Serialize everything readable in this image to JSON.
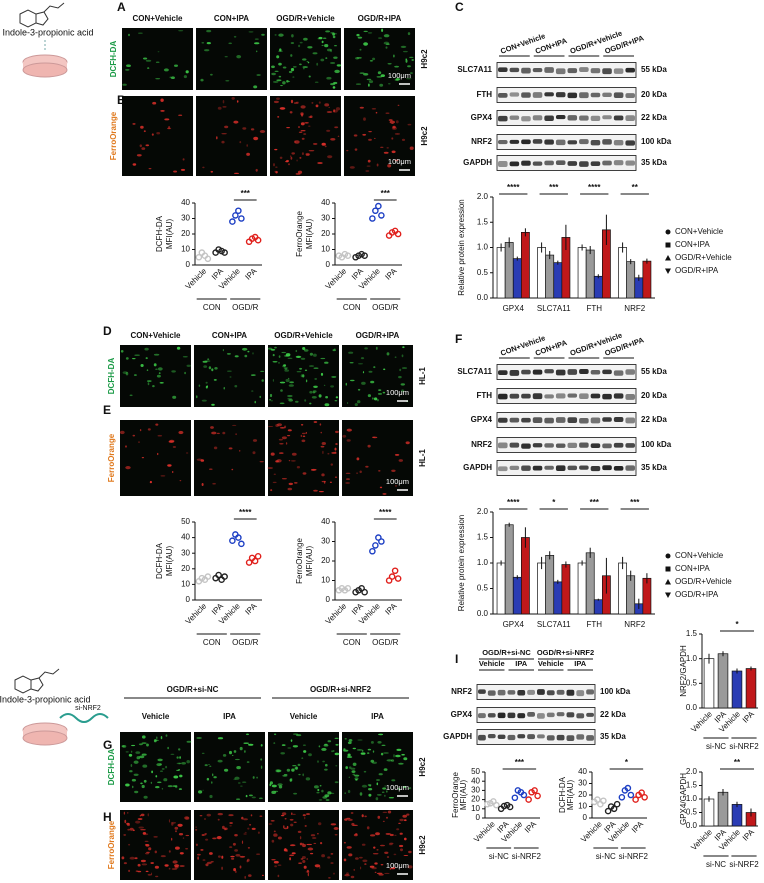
{
  "schematic_top": {
    "compound": "Indole-3-propionic acid"
  },
  "schematic_bottom": {
    "compound": "Indole-3-propionic acid",
    "treatment": "si-NRF2"
  },
  "image_panels": [
    {
      "label": "A",
      "columns": [
        "CON+Vehicle",
        "CON+IPA",
        "OGD/R+Vehicle",
        "OGD/R+IPA"
      ],
      "stain": "DCFH-DA",
      "cell_line": "H9c2",
      "scale": "100μm"
    },
    {
      "label": "B",
      "stain": "FerroOrange",
      "cell_line": "H9c2",
      "scale": "100μm"
    },
    {
      "label": "D",
      "columns": [
        "CON+Vehicle",
        "CON+IPA",
        "OGD/R+Vehicle",
        "OGD/R+IPA"
      ],
      "stain": "DCFH-DA",
      "cell_line": "HL-1",
      "scale": "100μm"
    },
    {
      "label": "E",
      "stain": "FerroOrange",
      "cell_line": "HL-1",
      "scale": "100μm"
    },
    {
      "label": "G",
      "groups": [
        "OGD/R+si-NC",
        "OGD/R+si-NRF2"
      ],
      "columns": [
        "Vehicle",
        "IPA",
        "Vehicle",
        "IPA"
      ],
      "stain": "DCFH-DA",
      "cell_line": "H9c2",
      "scale": "100μm"
    },
    {
      "label": "H",
      "stain": "FerroOrange",
      "cell_line": "H9c2",
      "scale": "100μm"
    }
  ],
  "blots": [
    {
      "label": "C",
      "columns": [
        "CON+Vehicle",
        "CON+IPA",
        "OGD/R+Vehicle",
        "OGD/R+IPA"
      ],
      "rows": [
        {
          "protein": "SLC7A11",
          "size": "55 kDa"
        },
        {
          "protein": "FTH",
          "size": "20 kDa"
        },
        {
          "protein": "GPX4",
          "size": "22 kDa"
        },
        {
          "protein": "NRF2",
          "size": "100 kDa"
        },
        {
          "protein": "GAPDH",
          "size": "35 kDa"
        }
      ]
    },
    {
      "label": "F",
      "columns": [
        "CON+Vehicle",
        "CON+IPA",
        "OGD/R+Vehicle",
        "OGD/R+IPA"
      ],
      "rows": [
        {
          "protein": "SLC7A11",
          "size": "55 kDa"
        },
        {
          "protein": "FTH",
          "size": "20 kDa"
        },
        {
          "protein": "GPX4",
          "size": "22 kDa"
        },
        {
          "protein": "NRF2",
          "size": "100 kDa"
        },
        {
          "protein": "GAPDH",
          "size": "35 kDa"
        }
      ]
    },
    {
      "label": "I",
      "groups": [
        "OGD/R+si-NC",
        "OGD/R+si-NRF2"
      ],
      "columns": [
        "Vehicle",
        "IPA",
        "Vehicle",
        "IPA"
      ],
      "rows": [
        {
          "protein": "NRF2",
          "size": "100 kDa"
        },
        {
          "protein": "GPX4",
          "size": "22 kDa"
        },
        {
          "protein": "GAPDH",
          "size": "35 kDa"
        }
      ]
    }
  ],
  "chart_data": [
    {
      "type": "dot",
      "ylabel": [
        "DCFH-DA",
        "MFI(AU)"
      ],
      "categories": [
        "Vehicle",
        "IPA",
        "Vehicle",
        "IPA"
      ],
      "groups": [
        "CON",
        "OGD/R"
      ],
      "colors": [
        "#c4c4c4",
        "#222222",
        "#1d3fc4",
        "#e0201c"
      ],
      "values": [
        [
          5,
          8,
          6,
          4
        ],
        [
          8,
          10,
          9,
          8
        ],
        [
          28,
          32,
          35,
          30
        ],
        [
          15,
          17,
          18,
          16
        ]
      ],
      "ylim": [
        0,
        40
      ],
      "yticks": [
        0,
        10,
        20,
        30,
        40
      ],
      "comparisons": [
        {
          "label": "***",
          "from": 2,
          "to": 3
        }
      ]
    },
    {
      "type": "dot",
      "ylabel": [
        "FerroOrange",
        "MFI(AU)"
      ],
      "categories": [
        "Vehicle",
        "IPA",
        "Vehicle",
        "IPA"
      ],
      "groups": [
        "CON",
        "OGD/R"
      ],
      "colors": [
        "#c4c4c4",
        "#222222",
        "#1d3fc4",
        "#e0201c"
      ],
      "values": [
        [
          6,
          5,
          7,
          6
        ],
        [
          5,
          6,
          7,
          6
        ],
        [
          30,
          35,
          38,
          32
        ],
        [
          19,
          21,
          22,
          20
        ]
      ],
      "ylim": [
        0,
        40
      ],
      "yticks": [
        0,
        10,
        20,
        30,
        40
      ],
      "comparisons": [
        {
          "label": "***",
          "from": 2,
          "to": 3
        }
      ]
    },
    {
      "type": "bar",
      "ylabel": "Relative protein expression",
      "categories": [
        "GPX4",
        "SLC7A11",
        "FTH",
        "NRF2"
      ],
      "series": [
        {
          "name": "CON+Vehicle",
          "color": "#ffffff",
          "values": [
            1.0,
            1.0,
            1.0,
            1.0
          ],
          "errors": [
            0.08,
            0.1,
            0.06,
            0.1
          ]
        },
        {
          "name": "CON+IPA",
          "color": "#9a9a9a",
          "values": [
            1.1,
            0.85,
            0.95,
            0.72
          ],
          "errors": [
            0.1,
            0.08,
            0.08,
            0.05
          ]
        },
        {
          "name": "OGD/R+Vehicle",
          "color": "#2a3cb4",
          "values": [
            0.78,
            0.7,
            0.43,
            0.4
          ],
          "errors": [
            0.04,
            0.04,
            0.04,
            0.06
          ]
        },
        {
          "name": "OGD/R+IPA",
          "color": "#c0181a",
          "values": [
            1.3,
            1.2,
            1.35,
            0.73
          ],
          "errors": [
            0.08,
            0.25,
            0.3,
            0.05
          ]
        }
      ],
      "ylim": [
        0,
        2
      ],
      "yticks": [
        {
          "value": 0,
          "label": "0.0"
        },
        0.5,
        {
          "value": 1,
          "label": "1.0"
        },
        1.5,
        {
          "value": 2,
          "label": "2.0"
        }
      ],
      "legend": "right",
      "comparisons": [
        {
          "label": "****",
          "category": 0
        },
        {
          "label": "***",
          "category": 1
        },
        {
          "label": "****",
          "category": 2
        },
        {
          "label": "**",
          "category": 3
        }
      ]
    },
    {
      "type": "dot",
      "ylabel": [
        "DCFH-DA",
        "MFI(AU)"
      ],
      "categories": [
        "Vehicle",
        "IPA",
        "Vehicle",
        "IPA"
      ],
      "groups": [
        "CON",
        "OGD/R"
      ],
      "colors": [
        "#c4c4c4",
        "#222222",
        "#1d3fc4",
        "#e0201c"
      ],
      "values": [
        [
          12,
          14,
          13,
          15
        ],
        [
          14,
          16,
          13,
          15
        ],
        [
          38,
          42,
          40,
          36
        ],
        [
          24,
          27,
          25,
          28
        ]
      ],
      "ylim": [
        0,
        50
      ],
      "yticks": [
        0,
        10,
        20,
        30,
        40,
        50
      ],
      "comparisons": [
        {
          "label": "****",
          "from": 2,
          "to": 3
        }
      ]
    },
    {
      "type": "dot",
      "ylabel": [
        "FerroOrange",
        "MFI(AU)"
      ],
      "categories": [
        "Vehicle",
        "IPA",
        "Vehicle",
        "IPA"
      ],
      "groups": [
        "CON",
        "OGD/R"
      ],
      "colors": [
        "#c4c4c4",
        "#222222",
        "#1d3fc4",
        "#e0201c"
      ],
      "values": [
        [
          5,
          6,
          5,
          6
        ],
        [
          4,
          5,
          6,
          4
        ],
        [
          25,
          28,
          32,
          30
        ],
        [
          10,
          12,
          15,
          11
        ]
      ],
      "ylim": [
        0,
        40
      ],
      "yticks": [
        0,
        10,
        20,
        30,
        40
      ],
      "comparisons": [
        {
          "label": "****",
          "from": 2,
          "to": 3
        }
      ]
    },
    {
      "type": "bar",
      "ylabel": "Relative protein expression",
      "categories": [
        "GPX4",
        "SLC7A11",
        "FTH",
        "NRF2"
      ],
      "series": [
        {
          "name": "CON+Vehicle",
          "color": "#ffffff",
          "values": [
            1.0,
            1.0,
            1.0,
            1.0
          ],
          "errors": [
            0.05,
            0.12,
            0.05,
            0.12
          ]
        },
        {
          "name": "CON+IPA",
          "color": "#9a9a9a",
          "values": [
            1.75,
            1.15,
            1.2,
            0.75
          ],
          "errors": [
            0.04,
            0.08,
            0.1,
            0.1
          ]
        },
        {
          "name": "OGD/R+Vehicle",
          "color": "#2a3cb4",
          "values": [
            0.72,
            0.63,
            0.28,
            0.2
          ],
          "errors": [
            0.04,
            0.04,
            0.02,
            0.1
          ]
        },
        {
          "name": "OGD/R+IPA",
          "color": "#c0181a",
          "values": [
            1.5,
            0.97,
            0.75,
            0.7
          ],
          "errors": [
            0.2,
            0.06,
            0.35,
            0.1
          ]
        }
      ],
      "ylim": [
        0,
        2
      ],
      "yticks": [
        {
          "value": 0,
          "label": "0.0"
        },
        0.5,
        {
          "value": 1,
          "label": "1.0"
        },
        1.5,
        {
          "value": 2,
          "label": "2.0"
        }
      ],
      "legend": "right",
      "comparisons": [
        {
          "label": "****",
          "category": 0
        },
        {
          "label": "*",
          "category": 1
        },
        {
          "label": "***",
          "category": 2
        },
        {
          "label": "***",
          "category": 3
        }
      ]
    },
    {
      "type": "dot",
      "ylabel": [
        "FerroOrange",
        "MFI(AU)"
      ],
      "categories": [
        "Vehicle",
        "IPA",
        "Vehicle",
        "IPA"
      ],
      "groups": [
        "si-NC",
        "si-NRF2"
      ],
      "colors": [
        "#c4c4c4",
        "#222222",
        "#1d3fc4",
        "#e0201c"
      ],
      "values": [
        [
          15,
          16,
          18,
          14
        ],
        [
          10,
          13,
          14,
          12
        ],
        [
          22,
          30,
          28,
          25
        ],
        [
          20,
          28,
          30,
          24
        ]
      ],
      "ylim": [
        0,
        50
      ],
      "yticks": [
        0,
        10,
        20,
        30,
        40,
        50
      ],
      "comparisons": [
        {
          "label": "***",
          "from": 1,
          "to": 3
        }
      ]
    },
    {
      "type": "dot",
      "ylabel": [
        "DCFH-DA",
        "MFI(AU)"
      ],
      "categories": [
        "Vehicle",
        "IPA",
        "Vehicle",
        "IPA"
      ],
      "groups": [
        "si-NC",
        "si-NRF2"
      ],
      "colors": [
        "#c4c4c4",
        "#222222",
        "#1d3fc4",
        "#e0201c"
      ],
      "values": [
        [
          14,
          16,
          12,
          15
        ],
        [
          6,
          10,
          8,
          12
        ],
        [
          18,
          24,
          26,
          20
        ],
        [
          16,
          20,
          22,
          18
        ]
      ],
      "ylim": [
        0,
        40
      ],
      "yticks": [
        0,
        10,
        20,
        30,
        40
      ],
      "comparisons": [
        {
          "label": "*",
          "from": 1,
          "to": 3
        }
      ]
    },
    {
      "type": "bar",
      "ylabel": "NRF2/GAPDH",
      "categories": [
        "Vehicle",
        "IPA",
        "Vehicle",
        "IPA"
      ],
      "groups": [
        "si-NC",
        "si-NRF2"
      ],
      "colors": [
        "#ffffff",
        "#9a9a9a",
        "#2a3cb4",
        "#c0181a"
      ],
      "values": [
        1.0,
        1.1,
        0.75,
        0.8
      ],
      "errors": [
        0.1,
        0.05,
        0.05,
        0.04
      ],
      "ylim": [
        0,
        1.5
      ],
      "yticks": [
        {
          "value": 0,
          "label": "0.0"
        },
        0.5,
        {
          "value": 1,
          "label": "1.0"
        },
        1.5
      ],
      "comparisons": [
        {
          "label": "*",
          "from": 1,
          "to": 3
        }
      ]
    },
    {
      "type": "bar",
      "ylabel": "GPX4/GAPDH",
      "categories": [
        "Vehicle",
        "IPA",
        "Vehicle",
        "IPA"
      ],
      "groups": [
        "si-NC",
        "si-NRF2"
      ],
      "colors": [
        "#ffffff",
        "#9a9a9a",
        "#2a3cb4",
        "#c0181a"
      ],
      "values": [
        1.0,
        1.25,
        0.8,
        0.5
      ],
      "errors": [
        0.1,
        0.12,
        0.1,
        0.15
      ],
      "ylim": [
        0,
        2
      ],
      "yticks": [
        {
          "value": 0,
          "label": "0.0"
        },
        0.5,
        {
          "value": 1,
          "label": "1.0"
        },
        1.5,
        {
          "value": 2,
          "label": "2.0"
        }
      ],
      "comparisons": [
        {
          "label": "**",
          "from": 1,
          "to": 3
        }
      ]
    }
  ]
}
